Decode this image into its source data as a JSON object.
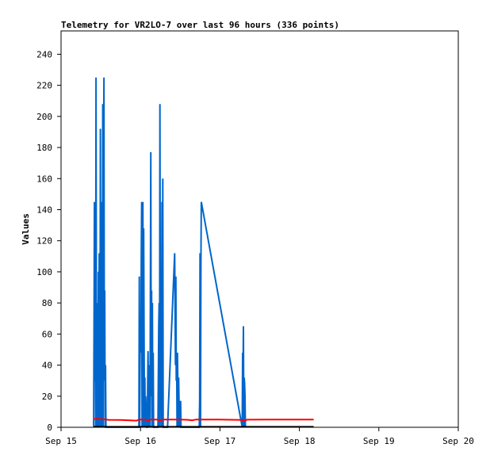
{
  "chart_data": {
    "type": "line",
    "title": "Telemetry for VR2LO-7 over last 96 hours (336 points)",
    "ylabel": "Values",
    "xlabel": "",
    "ylim": [
      0,
      255
    ],
    "yticks": [
      0,
      20,
      40,
      60,
      80,
      100,
      120,
      140,
      160,
      180,
      200,
      220,
      240
    ],
    "xlim": [
      0,
      5
    ],
    "xticks": [
      {
        "v": 0,
        "label": "Sep 15"
      },
      {
        "v": 1,
        "label": "Sep 16"
      },
      {
        "v": 2,
        "label": "Sep 17"
      },
      {
        "v": 3,
        "label": "Sep 18"
      },
      {
        "v": 4,
        "label": "Sep 19"
      },
      {
        "v": 5,
        "label": "Sep 20"
      }
    ],
    "grid": false,
    "legend": "none",
    "series": [
      {
        "color": "#0066cc",
        "points": [
          [
            0.41,
            0
          ],
          [
            0.415,
            65
          ],
          [
            0.42,
            145
          ],
          [
            0.425,
            30
          ],
          [
            0.43,
            112
          ],
          [
            0.435,
            0
          ],
          [
            0.44,
            225
          ],
          [
            0.445,
            60
          ],
          [
            0.45,
            80
          ],
          [
            0.455,
            0
          ],
          [
            0.46,
            50
          ],
          [
            0.465,
            0
          ],
          [
            0.47,
            100
          ],
          [
            0.475,
            0
          ],
          [
            0.48,
            112
          ],
          [
            0.485,
            20
          ],
          [
            0.49,
            0
          ],
          [
            0.495,
            192
          ],
          [
            0.5,
            40
          ],
          [
            0.505,
            72
          ],
          [
            0.51,
            0
          ],
          [
            0.515,
            145
          ],
          [
            0.52,
            20
          ],
          [
            0.525,
            208
          ],
          [
            0.53,
            0
          ],
          [
            0.535,
            160
          ],
          [
            0.54,
            225
          ],
          [
            0.545,
            30
          ],
          [
            0.55,
            88
          ],
          [
            0.555,
            0
          ],
          [
            0.56,
            40
          ],
          [
            0.565,
            0
          ],
          [
            0.98,
            0
          ],
          [
            0.985,
            97
          ],
          [
            0.99,
            0
          ],
          [
            0.995,
            48
          ],
          [
            1.0,
            65
          ],
          [
            1.005,
            48
          ],
          [
            1.01,
            112
          ],
          [
            1.015,
            145
          ],
          [
            1.02,
            0
          ],
          [
            1.025,
            20
          ],
          [
            1.03,
            145
          ],
          [
            1.035,
            0
          ],
          [
            1.04,
            128
          ],
          [
            1.045,
            60
          ],
          [
            1.05,
            0
          ],
          [
            1.055,
            32
          ],
          [
            1.06,
            0
          ],
          [
            1.065,
            20
          ],
          [
            1.08,
            0
          ],
          [
            1.085,
            0
          ],
          [
            1.095,
            49
          ],
          [
            1.1,
            20
          ],
          [
            1.105,
            0
          ],
          [
            1.11,
            40
          ],
          [
            1.12,
            0
          ],
          [
            1.13,
            177
          ],
          [
            1.135,
            20
          ],
          [
            1.14,
            88
          ],
          [
            1.145,
            0
          ],
          [
            1.15,
            80
          ],
          [
            1.155,
            0
          ],
          [
            1.16,
            48
          ],
          [
            1.165,
            0
          ],
          [
            1.22,
            0
          ],
          [
            1.23,
            65
          ],
          [
            1.235,
            80
          ],
          [
            1.24,
            0
          ],
          [
            1.245,
            208
          ],
          [
            1.25,
            20
          ],
          [
            1.255,
            97
          ],
          [
            1.26,
            0
          ],
          [
            1.265,
            56
          ],
          [
            1.27,
            145
          ],
          [
            1.275,
            0
          ],
          [
            1.28,
            160
          ],
          [
            1.285,
            0
          ],
          [
            1.29,
            0
          ],
          [
            1.34,
            0
          ],
          [
            1.43,
            112
          ],
          [
            1.44,
            40
          ],
          [
            1.445,
            97
          ],
          [
            1.45,
            30
          ],
          [
            1.455,
            48
          ],
          [
            1.46,
            0
          ],
          [
            1.465,
            48
          ],
          [
            1.47,
            30
          ],
          [
            1.475,
            0
          ],
          [
            1.48,
            32
          ],
          [
            1.49,
            0
          ],
          [
            1.495,
            16
          ],
          [
            1.5,
            0
          ],
          [
            1.505,
            17
          ],
          [
            1.51,
            0
          ],
          [
            1.74,
            0
          ],
          [
            1.745,
            17
          ],
          [
            1.75,
            112
          ],
          [
            1.755,
            0
          ],
          [
            1.76,
            105
          ],
          [
            1.765,
            145
          ],
          [
            2.28,
            0
          ],
          [
            2.285,
            48
          ],
          [
            2.29,
            32
          ],
          [
            2.295,
            65
          ],
          [
            2.3,
            0
          ],
          [
            2.305,
            32
          ],
          [
            2.31,
            28
          ],
          [
            2.315,
            20
          ],
          [
            2.32,
            0
          ]
        ]
      },
      {
        "color": "#ff0000",
        "points": [
          [
            0.41,
            5.3
          ],
          [
            0.46,
            5.4
          ],
          [
            0.52,
            5.2
          ],
          [
            0.6,
            4.8
          ],
          [
            0.75,
            4.7
          ],
          [
            0.9,
            4.4
          ],
          [
            0.95,
            4.3
          ],
          [
            0.98,
            5.0
          ],
          [
            1.05,
            5.0
          ],
          [
            1.1,
            4.5
          ],
          [
            1.13,
            5.0
          ],
          [
            1.2,
            5.0
          ],
          [
            1.25,
            4.4
          ],
          [
            1.28,
            5.0
          ],
          [
            1.4,
            5.0
          ],
          [
            1.5,
            5.0
          ],
          [
            1.6,
            4.8
          ],
          [
            1.65,
            4.5
          ],
          [
            1.7,
            5.0
          ],
          [
            2.0,
            5.0
          ],
          [
            2.28,
            4.7
          ],
          [
            2.31,
            4.1
          ],
          [
            2.34,
            4.9
          ],
          [
            2.6,
            5.0
          ],
          [
            3.0,
            5.0
          ],
          [
            3.18,
            5.0
          ]
        ]
      },
      {
        "color": "#000000",
        "points": [
          [
            0.41,
            0.3
          ],
          [
            3.18,
            0.3
          ]
        ]
      }
    ]
  }
}
